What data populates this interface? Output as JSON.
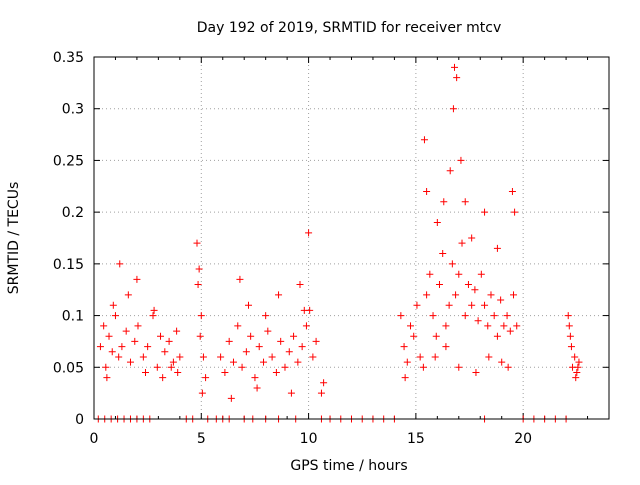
{
  "chart_data": {
    "type": "scatter",
    "title": "Day 192 of 2019, SRMTID for receiver mtcv",
    "xlabel": "GPS time / hours",
    "ylabel": "SRMTID / TECUs",
    "xlim": [
      0,
      24
    ],
    "ylim": [
      0,
      0.35
    ],
    "xticks": [
      0,
      5,
      10,
      15,
      20
    ],
    "xtick_labels": [
      "0",
      "5",
      "10",
      "15",
      "20"
    ],
    "yticks": [
      0,
      0.05,
      0.1,
      0.15,
      0.2,
      0.25,
      0.3,
      0.35
    ],
    "ytick_labels": [
      "0",
      "0.05",
      "0.1",
      "0.15",
      "0.2",
      "0.25",
      "0.3",
      "0.35"
    ],
    "grid": true,
    "marker": "+",
    "color": "#ff0000",
    "series": [
      {
        "name": "SRMTID",
        "x": [
          0.3,
          0.45,
          0.55,
          0.7,
          0.85,
          1.0,
          1.15,
          1.3,
          1.5,
          1.7,
          1.9,
          2.05,
          2.3,
          2.5,
          2.75,
          2.95,
          3.1,
          3.3,
          3.5,
          3.7,
          3.85,
          4.0,
          0.6,
          0.9,
          1.2,
          1.6,
          2.0,
          2.4,
          2.8,
          3.2,
          3.6,
          3.9,
          4.8,
          4.9,
          5.0,
          5.1,
          5.2,
          4.85,
          4.95,
          5.05,
          5.9,
          6.1,
          6.3,
          6.5,
          6.7,
          6.9,
          7.1,
          7.3,
          7.5,
          7.7,
          7.9,
          8.1,
          8.3,
          8.5,
          8.7,
          8.9,
          9.1,
          9.3,
          9.5,
          9.7,
          9.9,
          10.05,
          10.2,
          10.35,
          6.4,
          6.8,
          7.2,
          7.6,
          8.0,
          8.6,
          9.2,
          9.6,
          9.8,
          10.0,
          10.6,
          10.7,
          14.3,
          14.45,
          14.6,
          14.75,
          14.9,
          15.05,
          15.2,
          15.35,
          15.5,
          15.65,
          15.8,
          15.95,
          16.1,
          16.25,
          16.4,
          16.55,
          16.7,
          16.85,
          17.0,
          17.15,
          17.3,
          17.45,
          17.6,
          17.75,
          17.9,
          18.05,
          18.2,
          18.35,
          18.5,
          18.65,
          18.8,
          18.95,
          19.1,
          19.25,
          19.4,
          19.55,
          19.7,
          15.4,
          15.5,
          16.0,
          16.3,
          16.6,
          16.75,
          16.8,
          16.9,
          17.1,
          17.3,
          17.6,
          18.2,
          18.8,
          19.5,
          19.6,
          14.5,
          15.9,
          16.4,
          17.0,
          17.8,
          18.4,
          19.0,
          19.3,
          22.1,
          22.2,
          22.3,
          22.4,
          22.5,
          22.6,
          22.25,
          22.45,
          22.15,
          22.55,
          0.2,
          0.5,
          0.8,
          1.1,
          1.4,
          1.7,
          2.0,
          2.3,
          2.6,
          4.3,
          4.6,
          5.3,
          5.7,
          6.0,
          6.3,
          7.0,
          7.4,
          8.0,
          8.6,
          9.4,
          10.6,
          11.0,
          11.5,
          12.0,
          12.5,
          13.0,
          13.5,
          14.0,
          18.2,
          20.0,
          20.5,
          21.0,
          21.5,
          22.0
        ],
        "y": [
          0.07,
          0.09,
          0.05,
          0.08,
          0.065,
          0.1,
          0.06,
          0.07,
          0.085,
          0.055,
          0.075,
          0.09,
          0.06,
          0.07,
          0.1,
          0.05,
          0.08,
          0.065,
          0.075,
          0.055,
          0.085,
          0.06,
          0.04,
          0.11,
          0.15,
          0.12,
          0.135,
          0.045,
          0.105,
          0.04,
          0.05,
          0.045,
          0.17,
          0.145,
          0.1,
          0.06,
          0.04,
          0.13,
          0.08,
          0.025,
          0.06,
          0.045,
          0.075,
          0.055,
          0.09,
          0.05,
          0.065,
          0.08,
          0.04,
          0.07,
          0.055,
          0.085,
          0.06,
          0.045,
          0.075,
          0.05,
          0.065,
          0.08,
          0.055,
          0.07,
          0.09,
          0.105,
          0.06,
          0.075,
          0.02,
          0.135,
          0.11,
          0.03,
          0.1,
          0.12,
          0.025,
          0.13,
          0.105,
          0.18,
          0.025,
          0.035,
          0.1,
          0.07,
          0.055,
          0.09,
          0.08,
          0.11,
          0.06,
          0.05,
          0.12,
          0.14,
          0.1,
          0.08,
          0.13,
          0.16,
          0.09,
          0.11,
          0.15,
          0.12,
          0.14,
          0.17,
          0.1,
          0.13,
          0.11,
          0.125,
          0.095,
          0.14,
          0.11,
          0.09,
          0.12,
          0.1,
          0.08,
          0.115,
          0.09,
          0.1,
          0.085,
          0.12,
          0.09,
          0.27,
          0.22,
          0.19,
          0.21,
          0.24,
          0.3,
          0.34,
          0.33,
          0.25,
          0.21,
          0.175,
          0.2,
          0.165,
          0.22,
          0.2,
          0.04,
          0.06,
          0.07,
          0.05,
          0.045,
          0.06,
          0.055,
          0.05,
          0.1,
          0.08,
          0.05,
          0.06,
          0.045,
          0.055,
          0.07,
          0.04,
          0.09,
          0.05,
          0,
          0,
          0,
          0,
          0,
          0,
          0,
          0,
          0,
          0,
          0,
          0,
          0,
          0,
          0,
          0,
          0,
          0,
          0,
          0,
          0,
          0,
          0,
          0,
          0,
          0,
          0,
          0,
          0,
          0,
          0,
          0,
          0,
          0
        ]
      }
    ]
  }
}
